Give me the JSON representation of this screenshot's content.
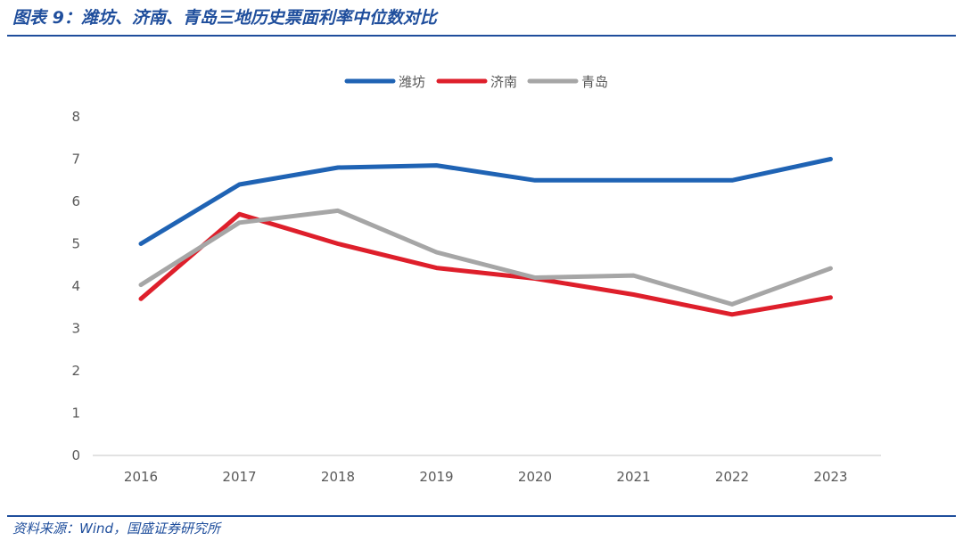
{
  "figure": {
    "title": "图表 9：潍坊、济南、青岛三地历史票面利率中位数对比",
    "source": "资料来源：Wind，国盛证券研究所"
  },
  "colors": {
    "accent": "#1f4e9c",
    "weifang": "#1f63b4",
    "jinan": "#de1f2b",
    "qingdao": "#a6a6a6",
    "axis": "#d9d9d9",
    "text": "#595959"
  },
  "chart_data": {
    "type": "line",
    "x": [
      "2016",
      "2017",
      "2018",
      "2019",
      "2020",
      "2021",
      "2022",
      "2023"
    ],
    "ylim": [
      0,
      8
    ],
    "yticks": [
      "0",
      "1",
      "2",
      "3",
      "4",
      "5",
      "6",
      "7",
      "8"
    ],
    "grid": false,
    "legend": "top-center",
    "series": [
      {
        "name": "潍坊",
        "color": "#1f63b4",
        "values": [
          5.0,
          6.4,
          6.8,
          6.85,
          6.5,
          6.5,
          6.5,
          7.0
        ]
      },
      {
        "name": "济南",
        "color": "#de1f2b",
        "values": [
          3.7,
          5.7,
          5.0,
          4.43,
          4.18,
          3.8,
          3.33,
          3.73
        ]
      },
      {
        "name": "青岛",
        "color": "#a6a6a6",
        "values": [
          4.03,
          5.5,
          5.78,
          4.8,
          4.2,
          4.25,
          3.57,
          4.42
        ]
      }
    ]
  }
}
